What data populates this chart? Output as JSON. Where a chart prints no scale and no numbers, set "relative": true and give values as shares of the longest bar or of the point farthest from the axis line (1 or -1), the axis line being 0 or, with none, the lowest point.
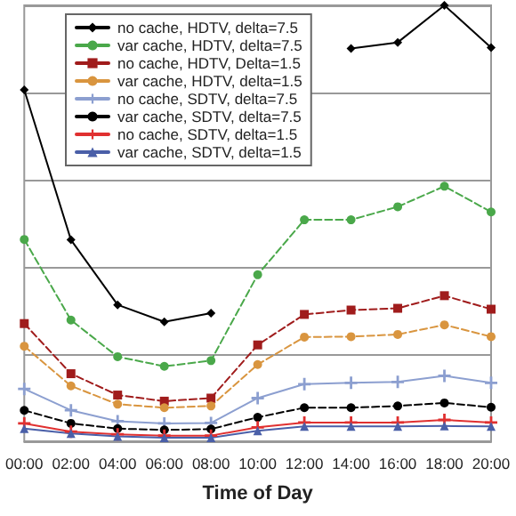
{
  "chart_data": {
    "type": "line",
    "xlabel": "Time of Day",
    "relative": true,
    "grid": "y",
    "legend": "top left",
    "categories": [
      "00:00",
      "02:00",
      "04:00",
      "06:00",
      "08:00",
      "10:00",
      "12:00",
      "14:00",
      "16:00",
      "18:00",
      "20:00"
    ],
    "series": [
      {
        "name": "no cache, HDTV, delta=7.5",
        "color": "#000000",
        "marker": "diamond",
        "line_style": "solid",
        "values": [
          0.806,
          0.462,
          0.313,
          0.274,
          0.294,
          null,
          null,
          0.901,
          0.915,
          1,
          0.903
        ]
      },
      {
        "name": "var cache, HDTV, delta=7.5",
        "color": "#4aa84a",
        "marker": "circle",
        "line_style": "dashed",
        "values": [
          0.463,
          0.278,
          0.194,
          0.172,
          0.185,
          0.382,
          0.508,
          0.508,
          0.538,
          0.585,
          0.526
        ]
      },
      {
        "name": "no cache, HDTV, Delta=1.5",
        "color": "#a01c1c",
        "marker": "square",
        "line_style": "dashed",
        "values": [
          0.27,
          0.155,
          0.106,
          0.092,
          0.099,
          0.221,
          0.291,
          0.301,
          0.305,
          0.334,
          0.303
        ]
      },
      {
        "name": "var cache, HDTV, delta=1.5",
        "color": "#d9953f",
        "marker": "circle",
        "line_style": "dashed",
        "values": [
          0.218,
          0.127,
          0.085,
          0.077,
          0.081,
          0.176,
          0.239,
          0.24,
          0.245,
          0.267,
          0.24
        ]
      },
      {
        "name": "no cache, SDTV, delta=7.5",
        "color": "#8c9fd0",
        "marker": "cross",
        "line_style": "solid",
        "values": [
          0.12,
          0.071,
          0.046,
          0.041,
          0.042,
          0.099,
          0.131,
          0.134,
          0.136,
          0.15,
          0.134
        ]
      },
      {
        "name": "var cache, SDTV, delta=7.5",
        "color": "#000000",
        "marker": "circle",
        "line_style": "dashed",
        "values": [
          0.071,
          0.041,
          0.029,
          0.026,
          0.028,
          0.055,
          0.077,
          0.077,
          0.081,
          0.088,
          0.078
        ]
      },
      {
        "name": "no cache, SDTV, delta=1.5",
        "color": "#e03030",
        "marker": "cross",
        "line_style": "solid",
        "values": [
          0.041,
          0.022,
          0.016,
          0.013,
          0.013,
          0.032,
          0.043,
          0.043,
          0.043,
          0.049,
          0.043
        ]
      },
      {
        "name": "var cache, SDTV, delta=1.5",
        "color": "#4a5fa8",
        "marker": "triangle",
        "line_style": "solid",
        "values": [
          0.029,
          0.018,
          0.011,
          0.008,
          0.008,
          0.024,
          0.034,
          0.034,
          0.034,
          0.035,
          0.034
        ]
      }
    ]
  }
}
